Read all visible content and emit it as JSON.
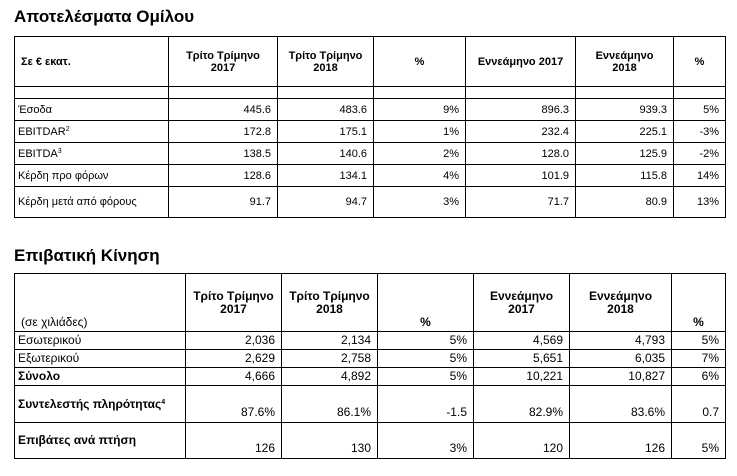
{
  "table1": {
    "title": "Αποτελέσματα Ομίλου",
    "headers": [
      "Σε € εκατ.",
      "Τρίτο Τρίμηνο 2017",
      "Τρίτο Τρίμηνο 2018",
      "%",
      "Εννεάμηνο 2017",
      "Εννεάμηνο 2018",
      "%"
    ],
    "rows": [
      {
        "label": "Έσοδα",
        "sup": "",
        "vals": [
          "445.6",
          "483.6",
          "9%",
          "896.3",
          "939.3",
          "5%"
        ]
      },
      {
        "label": "EBITDAR",
        "sup": "2",
        "vals": [
          "172.8",
          "175.1",
          "1%",
          "232.4",
          "225.1",
          "-3%"
        ]
      },
      {
        "label": "EBITDA",
        "sup": "3",
        "vals": [
          "138.5",
          "140.6",
          "2%",
          "128.0",
          "125.9",
          "-2%"
        ]
      },
      {
        "label": "Κέρδη προ φόρων",
        "sup": "",
        "vals": [
          "128.6",
          "134.1",
          "4%",
          "101.9",
          "115.8",
          "14%"
        ]
      },
      {
        "label": "Κέρδη μετά από φόρους",
        "sup": "",
        "vals": [
          "91.7",
          "94.7",
          "3%",
          "71.7",
          "80.9",
          "13%"
        ]
      }
    ]
  },
  "table2": {
    "title": "Επιβατική Κίνηση",
    "headers": [
      "(σε χιλιάδες)",
      "Τρίτο Τρίμηνο 2017",
      "Τρίτο Τρίμηνο 2018",
      "%",
      "Εννεάμηνο 2017",
      "Εννεάμηνο 2018",
      "%"
    ],
    "rows": [
      {
        "label": "Εσωτερικού",
        "sup": "",
        "bold": false,
        "vals": [
          "2,036",
          "2,134",
          "5%",
          "4,569",
          "4,793",
          "5%"
        ]
      },
      {
        "label": "Εξωτερικού",
        "sup": "",
        "bold": false,
        "vals": [
          "2,629",
          "2,758",
          "5%",
          "5,651",
          "6,035",
          "7%"
        ]
      },
      {
        "label": "Σύνολο",
        "sup": "",
        "bold": true,
        "vals": [
          "4,666",
          "4,892",
          "5%",
          "10,221",
          "10,827",
          "6%"
        ]
      },
      {
        "label": "Συντελεστής πληρότητας",
        "sup": "4",
        "bold": true,
        "vals": [
          "87.6%",
          "86.1%",
          "-1.5",
          "82.9%",
          "83.6%",
          "0.7"
        ]
      },
      {
        "label": "Επιβάτες ανά πτήση",
        "sup": "",
        "bold": true,
        "vals": [
          "126",
          "130",
          "3%",
          "120",
          "126",
          "5%"
        ]
      }
    ]
  }
}
